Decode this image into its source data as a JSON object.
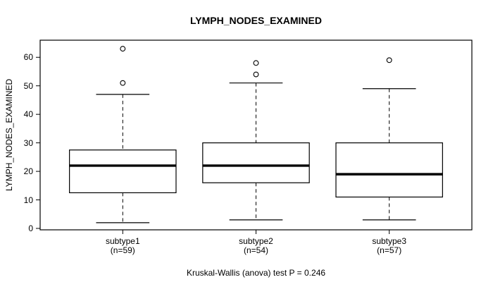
{
  "chart_data": {
    "type": "boxplot",
    "title": "LYMPH_NODES_EXAMINED",
    "ylabel": "LYMPH_NODES_EXAMINED",
    "xlabel": "",
    "footnote": "Kruskal-Wallis (anova) test P = 0.246",
    "ylim": [
      -0.5,
      66
    ],
    "yticks": [
      0,
      10,
      20,
      30,
      40,
      50,
      60
    ],
    "grid": false,
    "legend": "none",
    "groups": [
      {
        "label": "subtype1",
        "sublabel": "(n=59)",
        "n": 59,
        "whisker_low": 2,
        "q1": 12.5,
        "median": 22,
        "q3": 27.5,
        "whisker_high": 47,
        "outliers": [
          51,
          63
        ]
      },
      {
        "label": "subtype2",
        "sublabel": "(n=54)",
        "n": 54,
        "whisker_low": 3,
        "q1": 16,
        "median": 22,
        "q3": 30,
        "whisker_high": 51,
        "outliers": [
          54,
          58
        ]
      },
      {
        "label": "subtype3",
        "sublabel": "(n=57)",
        "n": 57,
        "whisker_low": 3,
        "q1": 11,
        "median": 19,
        "q3": 30,
        "whisker_high": 49,
        "outliers": [
          59
        ]
      }
    ],
    "colors": {
      "line": "#000000",
      "box_fill": "#ffffff",
      "background": "#ffffff",
      "text": "#000000"
    }
  }
}
